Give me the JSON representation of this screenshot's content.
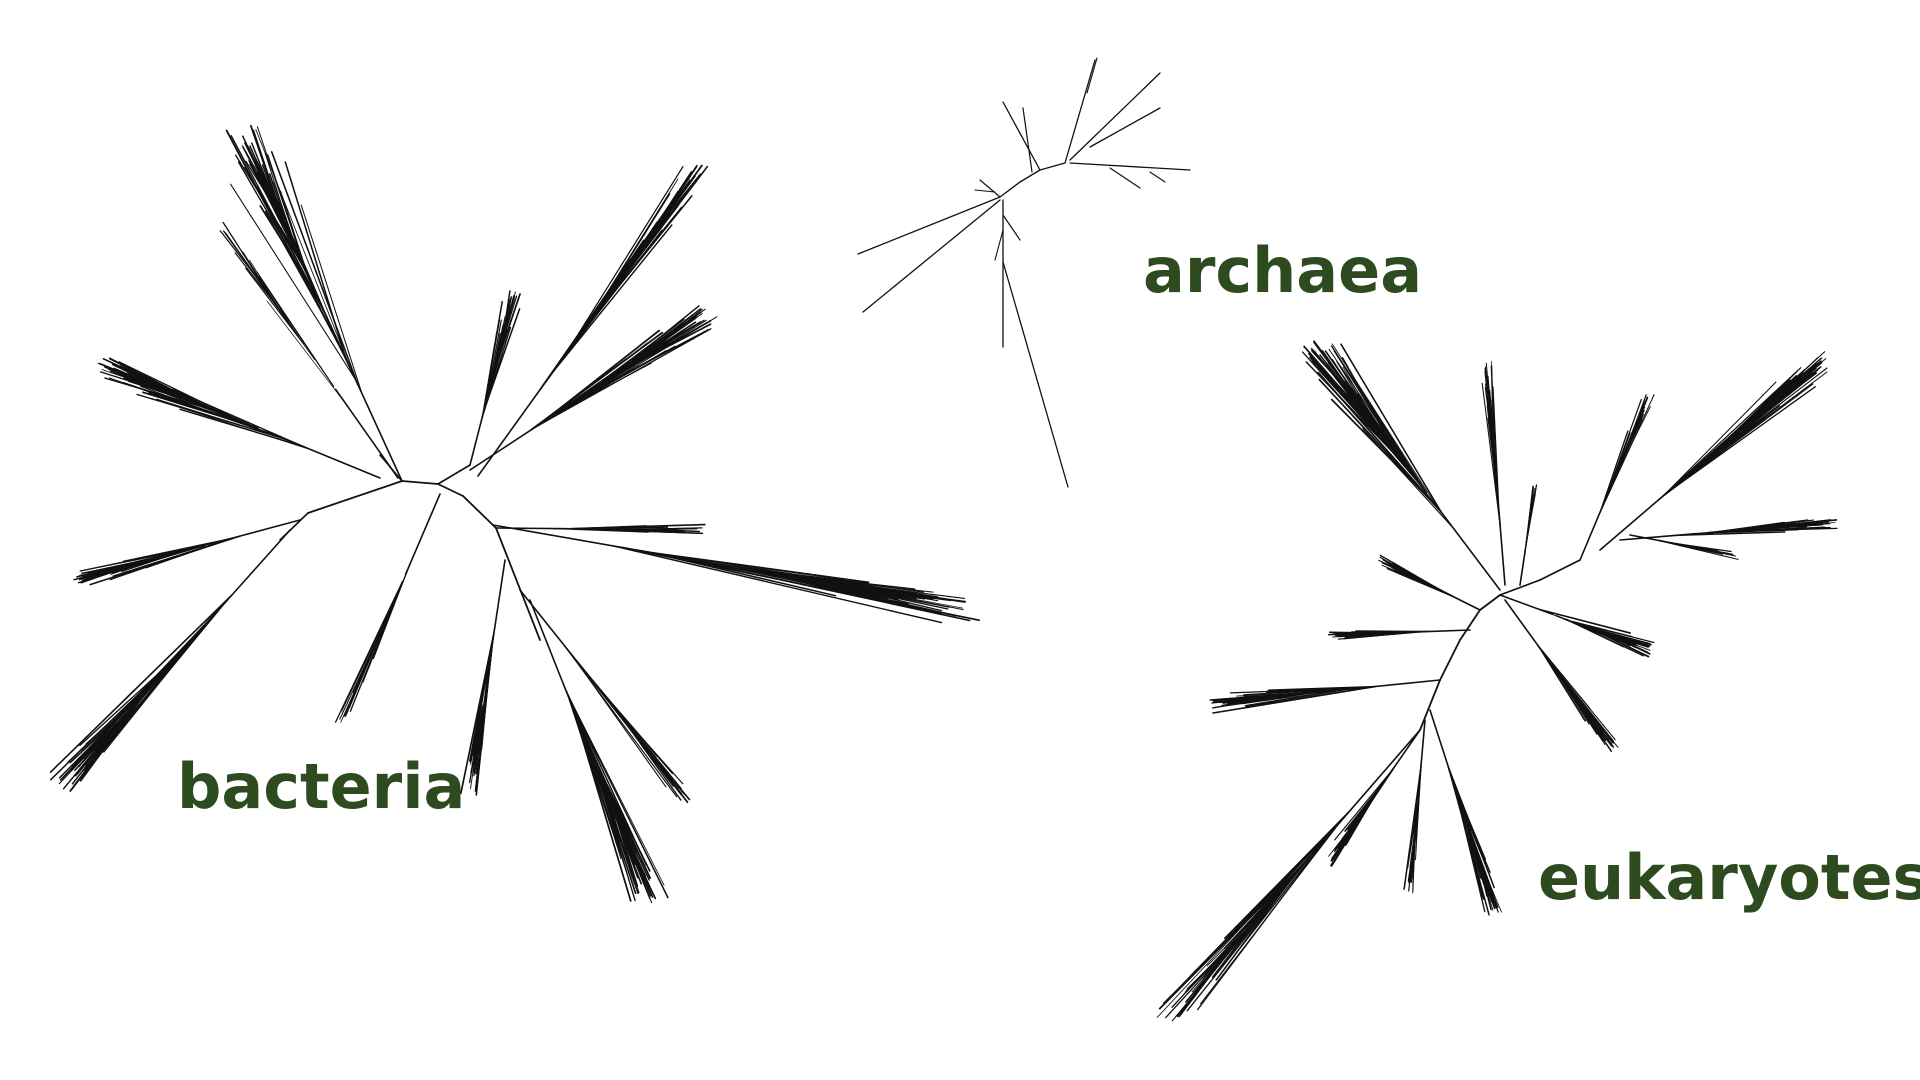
{
  "diagram": {
    "type": "unrooted-phylogenetic-tree",
    "label_color": "#2e4a1f",
    "line_color": "#111111",
    "background": "#ffffff",
    "groups": [
      {
        "id": "bacteria",
        "label": "bacteria"
      },
      {
        "id": "archaea",
        "label": "archaea"
      },
      {
        "id": "eukaryotes",
        "label": "eukaryotes"
      }
    ]
  }
}
